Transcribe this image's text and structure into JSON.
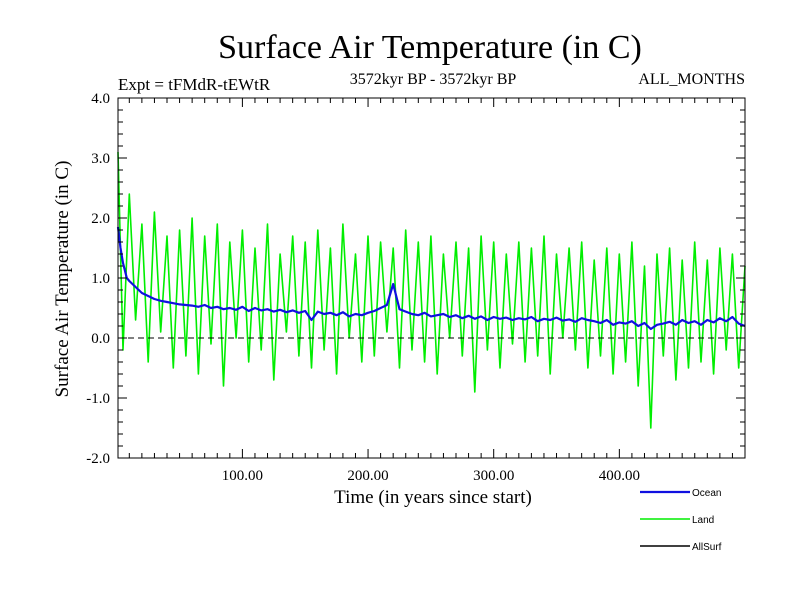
{
  "chart_data": {
    "type": "line",
    "title": "Surface Air Temperature (in C)",
    "subtitle_left": "Expt = tFMdR-tEWtR",
    "subtitle_center": "3572kyr BP - 3572kyr BP",
    "subtitle_right": "ALL_MONTHS",
    "xlabel": "Time (in years since start)",
    "ylabel": "Surface Air Temperature (in C)",
    "xlim": [
      1,
      500
    ],
    "ylim": [
      -2.0,
      4.0
    ],
    "x_ticks": [
      100,
      200,
      300,
      400
    ],
    "x_tick_labels": [
      "100.00",
      "200.00",
      "300.00",
      "400.00"
    ],
    "y_ticks": [
      -2.0,
      -1.0,
      0.0,
      1.0,
      2.0,
      3.0,
      4.0
    ],
    "y_tick_labels": [
      "-2.0",
      "-1.0",
      "0.0",
      "1.0",
      "2.0",
      "3.0",
      "4.0"
    ],
    "reference_line": 0.0,
    "series": [
      {
        "name": "Land",
        "color": "#00ee00",
        "x": [
          1,
          5,
          10,
          15,
          20,
          25,
          30,
          35,
          40,
          45,
          50,
          55,
          60,
          65,
          70,
          75,
          80,
          85,
          90,
          95,
          100,
          105,
          110,
          115,
          120,
          125,
          130,
          135,
          140,
          145,
          150,
          155,
          160,
          165,
          170,
          175,
          180,
          185,
          190,
          195,
          200,
          205,
          210,
          215,
          220,
          225,
          230,
          235,
          240,
          245,
          250,
          255,
          260,
          265,
          270,
          275,
          280,
          285,
          290,
          295,
          300,
          305,
          310,
          315,
          320,
          325,
          330,
          335,
          340,
          345,
          350,
          355,
          360,
          365,
          370,
          375,
          380,
          385,
          390,
          395,
          400,
          405,
          410,
          415,
          420,
          425,
          430,
          435,
          440,
          445,
          450,
          455,
          460,
          465,
          470,
          475,
          480,
          485,
          490,
          495,
          500
        ],
        "values": [
          3.1,
          -0.2,
          2.4,
          0.3,
          1.9,
          -0.4,
          2.1,
          0.1,
          1.7,
          -0.5,
          1.8,
          -0.3,
          2.0,
          -0.6,
          1.7,
          -0.1,
          1.9,
          -0.8,
          1.6,
          0.0,
          1.8,
          -0.4,
          1.5,
          -0.2,
          1.9,
          -0.7,
          1.4,
          0.1,
          1.7,
          -0.3,
          1.6,
          -0.5,
          1.8,
          -0.2,
          1.5,
          -0.6,
          1.9,
          0.0,
          1.4,
          -0.4,
          1.7,
          -0.3,
          1.6,
          0.1,
          1.5,
          -0.5,
          1.8,
          -0.2,
          1.6,
          -0.4,
          1.7,
          -0.6,
          1.4,
          0.0,
          1.6,
          -0.3,
          1.5,
          -0.9,
          1.7,
          -0.2,
          1.6,
          -0.5,
          1.4,
          -0.1,
          1.6,
          -0.4,
          1.5,
          -0.3,
          1.7,
          -0.6,
          1.4,
          0.0,
          1.5,
          -0.2,
          1.6,
          -0.5,
          1.3,
          -0.3,
          1.5,
          -0.6,
          1.4,
          -0.4,
          1.6,
          -0.8,
          1.2,
          -1.5,
          1.4,
          -0.3,
          1.5,
          -0.7,
          1.3,
          -0.5,
          1.6,
          -0.4,
          1.3,
          -0.6,
          1.5,
          -0.2,
          1.4,
          -0.5,
          1.2
        ]
      },
      {
        "name": "Ocean",
        "color": "#1010e0",
        "x": [
          1,
          3,
          5,
          8,
          10,
          15,
          20,
          25,
          30,
          35,
          40,
          45,
          50,
          55,
          60,
          65,
          70,
          75,
          80,
          85,
          90,
          95,
          100,
          105,
          110,
          115,
          120,
          125,
          130,
          135,
          140,
          145,
          150,
          155,
          160,
          165,
          170,
          175,
          180,
          185,
          190,
          195,
          200,
          205,
          210,
          215,
          220,
          225,
          230,
          235,
          240,
          245,
          250,
          255,
          260,
          265,
          270,
          275,
          280,
          285,
          290,
          295,
          300,
          305,
          310,
          315,
          320,
          325,
          330,
          335,
          340,
          345,
          350,
          355,
          360,
          365,
          370,
          375,
          380,
          385,
          390,
          395,
          400,
          405,
          410,
          415,
          420,
          425,
          430,
          435,
          440,
          445,
          450,
          455,
          460,
          465,
          470,
          475,
          480,
          485,
          490,
          495,
          500
        ],
        "values": [
          1.85,
          1.5,
          1.25,
          1.0,
          0.95,
          0.85,
          0.75,
          0.7,
          0.65,
          0.62,
          0.6,
          0.58,
          0.56,
          0.55,
          0.54,
          0.52,
          0.55,
          0.5,
          0.52,
          0.48,
          0.5,
          0.47,
          0.52,
          0.45,
          0.5,
          0.46,
          0.48,
          0.44,
          0.47,
          0.43,
          0.46,
          0.42,
          0.45,
          0.3,
          0.44,
          0.4,
          0.42,
          0.38,
          0.43,
          0.36,
          0.4,
          0.38,
          0.42,
          0.45,
          0.5,
          0.55,
          0.9,
          0.48,
          0.44,
          0.4,
          0.38,
          0.42,
          0.36,
          0.38,
          0.4,
          0.35,
          0.38,
          0.33,
          0.37,
          0.32,
          0.36,
          0.3,
          0.35,
          0.32,
          0.34,
          0.3,
          0.33,
          0.31,
          0.35,
          0.28,
          0.32,
          0.3,
          0.34,
          0.29,
          0.31,
          0.27,
          0.33,
          0.3,
          0.28,
          0.25,
          0.3,
          0.22,
          0.26,
          0.24,
          0.28,
          0.2,
          0.25,
          0.15,
          0.22,
          0.24,
          0.27,
          0.22,
          0.3,
          0.25,
          0.28,
          0.22,
          0.3,
          0.26,
          0.33,
          0.28,
          0.35,
          0.24,
          0.2
        ]
      },
      {
        "name": "AllSurf",
        "color": "#000000",
        "x": [],
        "values": []
      }
    ],
    "legend": [
      {
        "name": "Ocean",
        "color": "#1010e0"
      },
      {
        "name": "Land",
        "color": "#00ee00"
      },
      {
        "name": "AllSurf",
        "color": "#000000"
      }
    ],
    "legend_position": "bottom-right"
  }
}
